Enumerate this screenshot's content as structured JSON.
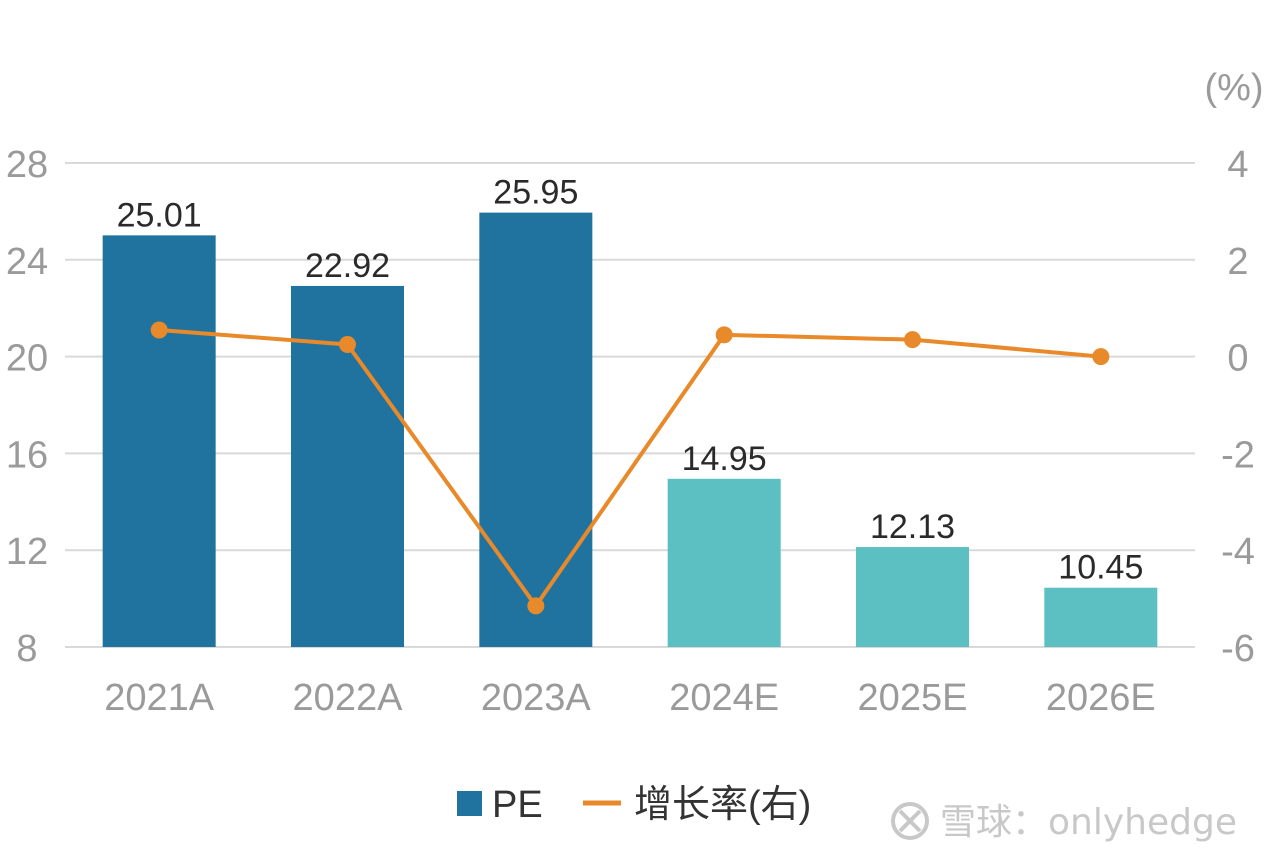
{
  "chart_data": {
    "type": "bar",
    "categories": [
      "2021A",
      "2022A",
      "2023A",
      "2024E",
      "2025E",
      "2026E"
    ],
    "series": [
      {
        "name": "PE",
        "type": "bar",
        "axis": "left",
        "values": [
          25.01,
          22.92,
          25.95,
          14.95,
          12.13,
          10.45
        ],
        "labels": [
          "25.01",
          "22.92",
          "25.95",
          "14.95",
          "12.13",
          "10.45"
        ],
        "colors": [
          "#21739f",
          "#21739f",
          "#21739f",
          "#5cbfc2",
          "#5cbfc2",
          "#5cbfc2"
        ]
      },
      {
        "name": "增长率(右)",
        "type": "line",
        "axis": "right",
        "values": [
          0.55,
          0.25,
          -5.15,
          0.45,
          0.35,
          0.0
        ],
        "color": "#e8892a"
      }
    ],
    "left_axis": {
      "range": [
        8,
        28
      ],
      "ticks": [
        8,
        12,
        16,
        20,
        24,
        28
      ],
      "tick_labels": [
        "8",
        "12",
        "16",
        "20",
        "24",
        "28"
      ]
    },
    "right_axis": {
      "range": [
        -6,
        4
      ],
      "ticks": [
        -6,
        -4,
        -2,
        0,
        2,
        4
      ],
      "tick_labels": [
        "-6",
        "-4",
        "-2",
        "0",
        "2",
        "4"
      ],
      "unit": "(%)"
    },
    "grid": true,
    "legend_position": "bottom",
    "legend": [
      {
        "label": "PE",
        "kind": "square",
        "color": "#21739f"
      },
      {
        "label": "增长率(右)",
        "kind": "line",
        "color": "#e8892a"
      }
    ]
  },
  "watermark": {
    "text": "雪球：onlyhedge",
    "icon": "snowball-logo-icon"
  }
}
